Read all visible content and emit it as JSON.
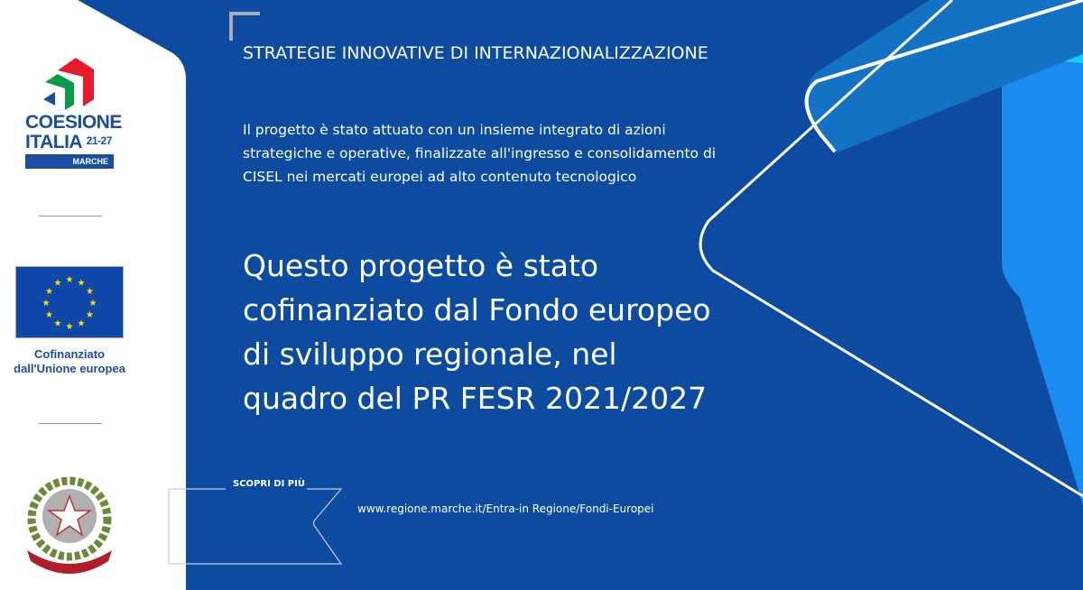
{
  "sidebar": {
    "coesione": {
      "line1": "COESIONE",
      "line2": "ITALIA",
      "years": "21-27",
      "region": "MARCHE"
    },
    "eu": {
      "caption_line1": "Cofinanziato",
      "caption_line2": "dall'Unione europea"
    },
    "emblem": {
      "text": "REPVBBLICA ITALIANA"
    }
  },
  "main": {
    "title": "STRATEGIE INNOVATIVE DI INTERNAZIONALIZZAZIONE",
    "description": "Il progetto è stato attuato con un insieme integrato di azioni strategiche e operative, finalizzate all'ingresso e consolidamento di CISEL nei mercati europei ad alto contenuto tecnologico",
    "statement": "Questo progetto è stato cofinanziato dal Fondo europeo di sviluppo regionale, nel quadro del PR FESR 2021/2027",
    "more_label": "SCOPRI DI PIÙ",
    "url": "www.regione.marche.it/Entra-in Regione/Fondi-Europei"
  },
  "colors": {
    "background": "#0d4ba0",
    "sidebar": "#ffffff",
    "accent_light": "#1e90f0",
    "accent_cyan": "#1ad0f5"
  }
}
